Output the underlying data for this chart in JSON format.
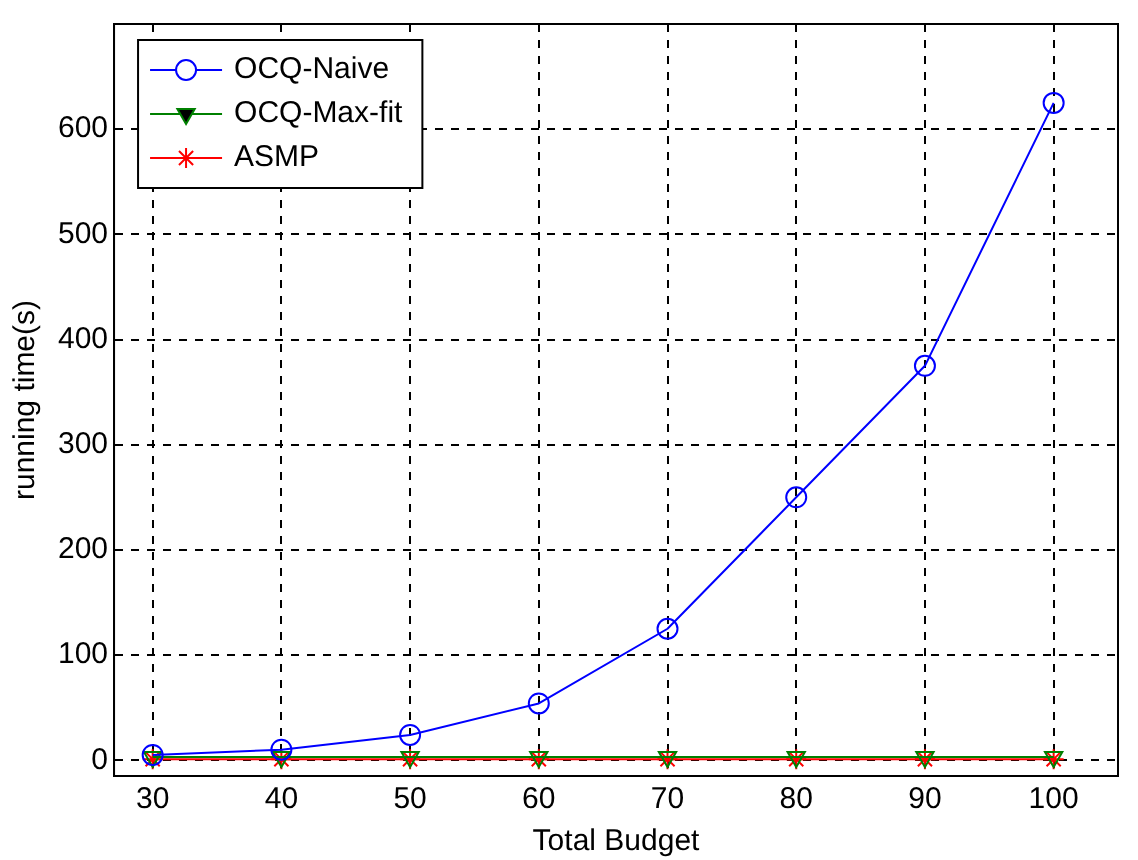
{
  "chart_data": {
    "type": "line",
    "xlabel": "Total Budget",
    "ylabel": "running time(s)",
    "x": [
      30,
      40,
      50,
      60,
      70,
      80,
      90,
      100
    ],
    "series": [
      {
        "name": "OCQ-Naive",
        "color": "#0000ff",
        "marker": "circle",
        "values": [
          5,
          10,
          24,
          54,
          125,
          250,
          375,
          625
        ]
      },
      {
        "name": "OCQ-Max-fit",
        "color": "#008000",
        "marker": "triangle",
        "values": [
          3,
          3,
          3,
          3,
          3,
          3,
          3,
          3
        ]
      },
      {
        "name": "ASMP",
        "color": "#ff0000",
        "marker": "cross",
        "values": [
          1,
          1,
          1,
          1,
          1,
          1,
          1,
          1
        ]
      }
    ],
    "xlim": [
      27,
      105
    ],
    "xticks": [
      30,
      40,
      50,
      60,
      70,
      80,
      90,
      100
    ],
    "ylim": [
      -15,
      700
    ],
    "yticks": [
      0,
      100,
      200,
      300,
      400,
      500,
      600
    ],
    "grid": true,
    "legend": "top left",
    "line_style": "solid"
  }
}
